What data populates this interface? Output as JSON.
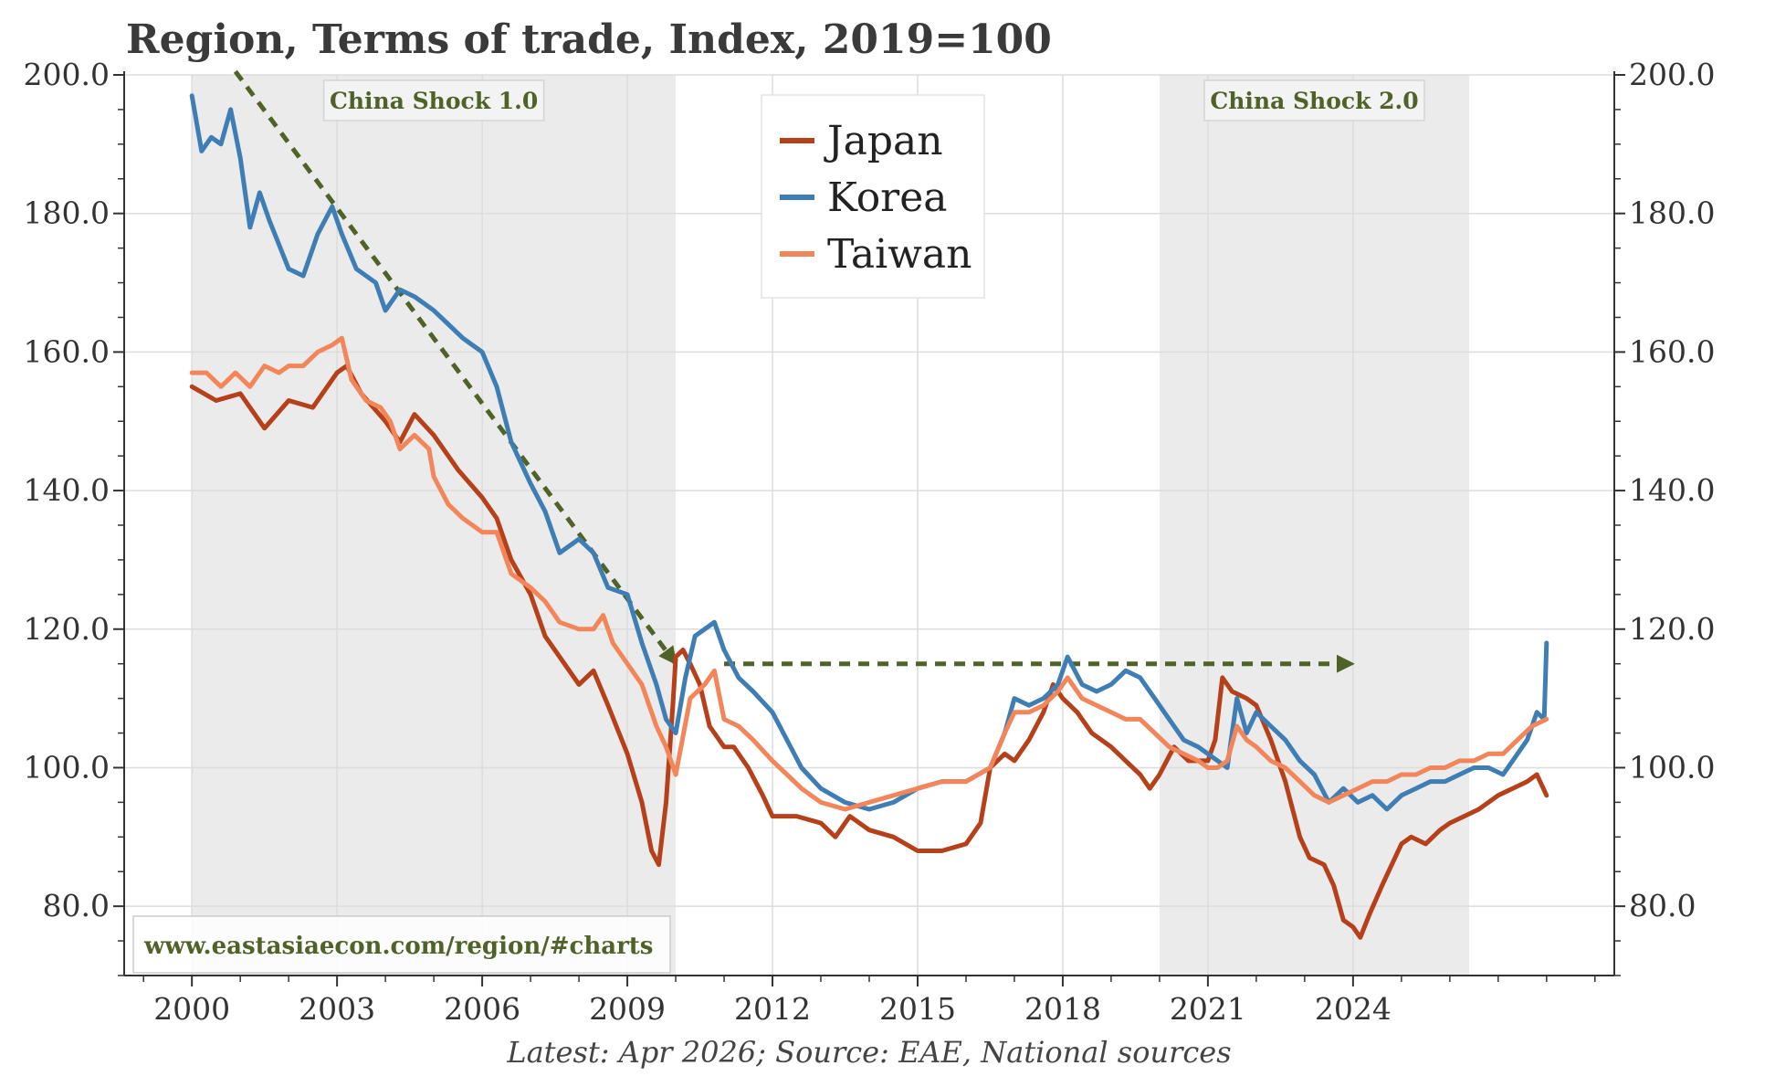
{
  "chart_data": {
    "type": "line",
    "title": "Region, Terms of trade, Index, 2019=100",
    "footer": "Latest: Apr 2026; Source: EAE, National sources",
    "watermark": "www.eastasiaecon.com/region/#charts",
    "x_ticks": [
      "2000",
      "2003",
      "2006",
      "2009",
      "2012",
      "2015",
      "2018",
      "2021",
      "2024"
    ],
    "y_ticks": [
      "80.0",
      "100.0",
      "120.0",
      "140.0",
      "160.0",
      "180.0",
      "200.0"
    ],
    "y_tick_values": [
      80,
      100,
      120,
      140,
      160,
      180,
      200
    ],
    "ylim": [
      70,
      200
    ],
    "xlim": [
      1998.6,
      2029.4
    ],
    "grid": true,
    "dual_y_axis": true,
    "legend_position": "top-center",
    "shaded_periods": [
      {
        "label": "China Shock 1.0",
        "start": 2000.0,
        "end": 2010.0
      },
      {
        "label": "China Shock 2.0",
        "start": 2020.0,
        "end": 2026.4
      }
    ],
    "annotations": [
      {
        "type": "dashed-arrow",
        "from": [
          2000.9,
          200.5
        ],
        "to": [
          2010.0,
          115.0
        ],
        "color": "#4f6228"
      },
      {
        "type": "dashed-arrow",
        "from": [
          2011.0,
          115.0
        ],
        "to": [
          2024.0,
          115.0
        ],
        "color": "#4f6228"
      }
    ],
    "series": [
      {
        "name": "Japan",
        "color": "#b5401a",
        "points": [
          [
            2000.0,
            155
          ],
          [
            2000.5,
            153
          ],
          [
            2001.0,
            154
          ],
          [
            2001.5,
            149
          ],
          [
            2002.0,
            153
          ],
          [
            2002.5,
            152
          ],
          [
            2003.0,
            157
          ],
          [
            2003.2,
            158
          ],
          [
            2003.5,
            154
          ],
          [
            2004.0,
            150
          ],
          [
            2004.3,
            147
          ],
          [
            2004.6,
            151
          ],
          [
            2005.0,
            148
          ],
          [
            2005.5,
            143
          ],
          [
            2006.0,
            139
          ],
          [
            2006.3,
            136
          ],
          [
            2006.6,
            130
          ],
          [
            2007.0,
            125
          ],
          [
            2007.3,
            119
          ],
          [
            2007.7,
            115
          ],
          [
            2008.0,
            112
          ],
          [
            2008.3,
            114
          ],
          [
            2008.6,
            109
          ],
          [
            2009.0,
            102
          ],
          [
            2009.3,
            95
          ],
          [
            2009.5,
            88
          ],
          [
            2009.65,
            86
          ],
          [
            2009.8,
            95
          ],
          [
            2009.95,
            110
          ],
          [
            2010.0,
            116
          ],
          [
            2010.15,
            117
          ],
          [
            2010.3,
            115
          ],
          [
            2010.5,
            112
          ],
          [
            2010.7,
            106
          ],
          [
            2011.0,
            103
          ],
          [
            2011.2,
            103
          ],
          [
            2011.5,
            100
          ],
          [
            2011.8,
            96
          ],
          [
            2012.0,
            93
          ],
          [
            2012.5,
            93
          ],
          [
            2013.0,
            92
          ],
          [
            2013.3,
            90
          ],
          [
            2013.6,
            93
          ],
          [
            2014.0,
            91
          ],
          [
            2014.5,
            90
          ],
          [
            2015.0,
            88
          ],
          [
            2015.5,
            88
          ],
          [
            2016.0,
            89
          ],
          [
            2016.3,
            92
          ],
          [
            2016.5,
            100
          ],
          [
            2016.8,
            102
          ],
          [
            2017.0,
            101
          ],
          [
            2017.3,
            104
          ],
          [
            2017.6,
            108
          ],
          [
            2017.8,
            112
          ],
          [
            2018.0,
            110
          ],
          [
            2018.3,
            108
          ],
          [
            2018.6,
            105
          ],
          [
            2019.0,
            103
          ],
          [
            2019.3,
            101
          ],
          [
            2019.6,
            99
          ],
          [
            2019.8,
            97
          ],
          [
            2020.0,
            99
          ],
          [
            2020.3,
            103
          ],
          [
            2020.6,
            101
          ],
          [
            2021.0,
            101
          ],
          [
            2021.15,
            104
          ],
          [
            2021.3,
            113
          ],
          [
            2021.5,
            111
          ],
          [
            2021.8,
            110
          ],
          [
            2022.0,
            109
          ],
          [
            2022.3,
            104
          ],
          [
            2022.6,
            98
          ],
          [
            2022.9,
            90
          ],
          [
            2023.1,
            87
          ],
          [
            2023.4,
            86
          ],
          [
            2023.6,
            83
          ],
          [
            2023.8,
            78
          ],
          [
            2024.0,
            77
          ],
          [
            2024.15,
            75.5
          ],
          [
            2024.35,
            79
          ],
          [
            2024.6,
            83
          ],
          [
            2024.8,
            86
          ],
          [
            2025.0,
            89
          ],
          [
            2025.2,
            90
          ],
          [
            2025.5,
            89
          ],
          [
            2025.8,
            91
          ],
          [
            2026.0,
            92
          ],
          [
            2026.3,
            93
          ],
          [
            2026.6,
            94
          ],
          [
            2027.0,
            96
          ],
          [
            2027.3,
            97
          ],
          [
            2027.6,
            98
          ],
          [
            2027.8,
            99
          ],
          [
            2028.0,
            96
          ]
        ]
      },
      {
        "name": "Korea",
        "color": "#3f7db5",
        "points": [
          [
            2000.0,
            197
          ],
          [
            2000.2,
            189
          ],
          [
            2000.4,
            191
          ],
          [
            2000.6,
            190
          ],
          [
            2000.8,
            195
          ],
          [
            2001.0,
            188
          ],
          [
            2001.2,
            178
          ],
          [
            2001.4,
            183
          ],
          [
            2001.6,
            179
          ],
          [
            2002.0,
            172
          ],
          [
            2002.3,
            171
          ],
          [
            2002.6,
            177
          ],
          [
            2002.9,
            181
          ],
          [
            2003.1,
            177
          ],
          [
            2003.4,
            172
          ],
          [
            2003.8,
            170
          ],
          [
            2004.0,
            166
          ],
          [
            2004.3,
            169
          ],
          [
            2004.6,
            168
          ],
          [
            2005.0,
            166
          ],
          [
            2005.3,
            164
          ],
          [
            2005.6,
            162
          ],
          [
            2006.0,
            160
          ],
          [
            2006.3,
            155
          ],
          [
            2006.6,
            147
          ],
          [
            2007.0,
            141
          ],
          [
            2007.3,
            137
          ],
          [
            2007.6,
            131
          ],
          [
            2008.0,
            133
          ],
          [
            2008.3,
            131
          ],
          [
            2008.6,
            126
          ],
          [
            2009.0,
            125
          ],
          [
            2009.3,
            118
          ],
          [
            2009.6,
            112
          ],
          [
            2009.8,
            107
          ],
          [
            2010.0,
            105
          ],
          [
            2010.2,
            113
          ],
          [
            2010.4,
            119
          ],
          [
            2010.6,
            120
          ],
          [
            2010.8,
            121
          ],
          [
            2011.0,
            117
          ],
          [
            2011.3,
            113
          ],
          [
            2011.6,
            111
          ],
          [
            2012.0,
            108
          ],
          [
            2012.3,
            104
          ],
          [
            2012.6,
            100
          ],
          [
            2013.0,
            97
          ],
          [
            2013.5,
            95
          ],
          [
            2014.0,
            94
          ],
          [
            2014.5,
            95
          ],
          [
            2015.0,
            97
          ],
          [
            2015.5,
            98
          ],
          [
            2016.0,
            98
          ],
          [
            2016.5,
            100
          ],
          [
            2016.8,
            105
          ],
          [
            2017.0,
            110
          ],
          [
            2017.3,
            109
          ],
          [
            2017.6,
            110
          ],
          [
            2017.9,
            112
          ],
          [
            2018.1,
            116
          ],
          [
            2018.4,
            112
          ],
          [
            2018.7,
            111
          ],
          [
            2019.0,
            112
          ],
          [
            2019.3,
            114
          ],
          [
            2019.6,
            113
          ],
          [
            2019.9,
            110
          ],
          [
            2020.2,
            107
          ],
          [
            2020.5,
            104
          ],
          [
            2020.8,
            103
          ],
          [
            2021.0,
            102
          ],
          [
            2021.2,
            101
          ],
          [
            2021.4,
            100
          ],
          [
            2021.6,
            110
          ],
          [
            2021.8,
            105
          ],
          [
            2022.0,
            108
          ],
          [
            2022.3,
            106
          ],
          [
            2022.6,
            104
          ],
          [
            2022.9,
            101
          ],
          [
            2023.2,
            99
          ],
          [
            2023.5,
            95
          ],
          [
            2023.8,
            97
          ],
          [
            2024.1,
            95
          ],
          [
            2024.4,
            96
          ],
          [
            2024.7,
            94
          ],
          [
            2025.0,
            96
          ],
          [
            2025.3,
            97
          ],
          [
            2025.6,
            98
          ],
          [
            2025.9,
            98
          ],
          [
            2026.2,
            99
          ],
          [
            2026.5,
            100
          ],
          [
            2026.8,
            100
          ],
          [
            2027.1,
            99
          ],
          [
            2027.4,
            102
          ],
          [
            2027.6,
            104
          ],
          [
            2027.8,
            108
          ],
          [
            2027.95,
            107
          ],
          [
            2028.0,
            118
          ]
        ]
      },
      {
        "name": "Taiwan",
        "color": "#f2865a",
        "points": [
          [
            2000.0,
            157
          ],
          [
            2000.3,
            157
          ],
          [
            2000.6,
            155
          ],
          [
            2000.9,
            157
          ],
          [
            2001.2,
            155
          ],
          [
            2001.5,
            158
          ],
          [
            2001.8,
            157
          ],
          [
            2002.0,
            158
          ],
          [
            2002.3,
            158
          ],
          [
            2002.6,
            160
          ],
          [
            2002.9,
            161
          ],
          [
            2003.1,
            162
          ],
          [
            2003.3,
            156
          ],
          [
            2003.6,
            153
          ],
          [
            2003.9,
            152
          ],
          [
            2004.1,
            150
          ],
          [
            2004.3,
            146
          ],
          [
            2004.6,
            148
          ],
          [
            2004.9,
            146
          ],
          [
            2005.0,
            142
          ],
          [
            2005.3,
            138
          ],
          [
            2005.6,
            136
          ],
          [
            2006.0,
            134
          ],
          [
            2006.3,
            134
          ],
          [
            2006.6,
            128
          ],
          [
            2007.0,
            126
          ],
          [
            2007.3,
            124
          ],
          [
            2007.6,
            121
          ],
          [
            2008.0,
            120
          ],
          [
            2008.3,
            120
          ],
          [
            2008.5,
            122
          ],
          [
            2008.7,
            118
          ],
          [
            2009.0,
            115
          ],
          [
            2009.3,
            112
          ],
          [
            2009.6,
            106
          ],
          [
            2009.8,
            103
          ],
          [
            2010.0,
            99
          ],
          [
            2010.3,
            110
          ],
          [
            2010.6,
            112
          ],
          [
            2010.8,
            114
          ],
          [
            2011.0,
            107
          ],
          [
            2011.3,
            106
          ],
          [
            2011.6,
            104
          ],
          [
            2012.0,
            101
          ],
          [
            2012.3,
            99
          ],
          [
            2012.6,
            97
          ],
          [
            2013.0,
            95
          ],
          [
            2013.5,
            94
          ],
          [
            2014.0,
            95
          ],
          [
            2014.5,
            96
          ],
          [
            2015.0,
            97
          ],
          [
            2015.5,
            98
          ],
          [
            2016.0,
            98
          ],
          [
            2016.5,
            100
          ],
          [
            2016.8,
            105
          ],
          [
            2017.0,
            108
          ],
          [
            2017.3,
            108
          ],
          [
            2017.6,
            109
          ],
          [
            2017.9,
            111
          ],
          [
            2018.1,
            113
          ],
          [
            2018.4,
            110
          ],
          [
            2018.7,
            109
          ],
          [
            2019.0,
            108
          ],
          [
            2019.3,
            107
          ],
          [
            2019.6,
            107
          ],
          [
            2019.9,
            105
          ],
          [
            2020.2,
            103
          ],
          [
            2020.5,
            102
          ],
          [
            2020.8,
            101
          ],
          [
            2021.0,
            100
          ],
          [
            2021.2,
            100
          ],
          [
            2021.4,
            101
          ],
          [
            2021.6,
            106
          ],
          [
            2021.8,
            104
          ],
          [
            2022.0,
            103
          ],
          [
            2022.3,
            101
          ],
          [
            2022.6,
            100
          ],
          [
            2022.9,
            98
          ],
          [
            2023.2,
            96
          ],
          [
            2023.5,
            95
          ],
          [
            2023.8,
            96
          ],
          [
            2024.1,
            97
          ],
          [
            2024.4,
            98
          ],
          [
            2024.7,
            98
          ],
          [
            2025.0,
            99
          ],
          [
            2025.3,
            99
          ],
          [
            2025.6,
            100
          ],
          [
            2025.9,
            100
          ],
          [
            2026.2,
            101
          ],
          [
            2026.5,
            101
          ],
          [
            2026.8,
            102
          ],
          [
            2027.1,
            102
          ],
          [
            2027.4,
            104
          ],
          [
            2027.7,
            106
          ],
          [
            2028.0,
            107
          ]
        ]
      }
    ]
  }
}
